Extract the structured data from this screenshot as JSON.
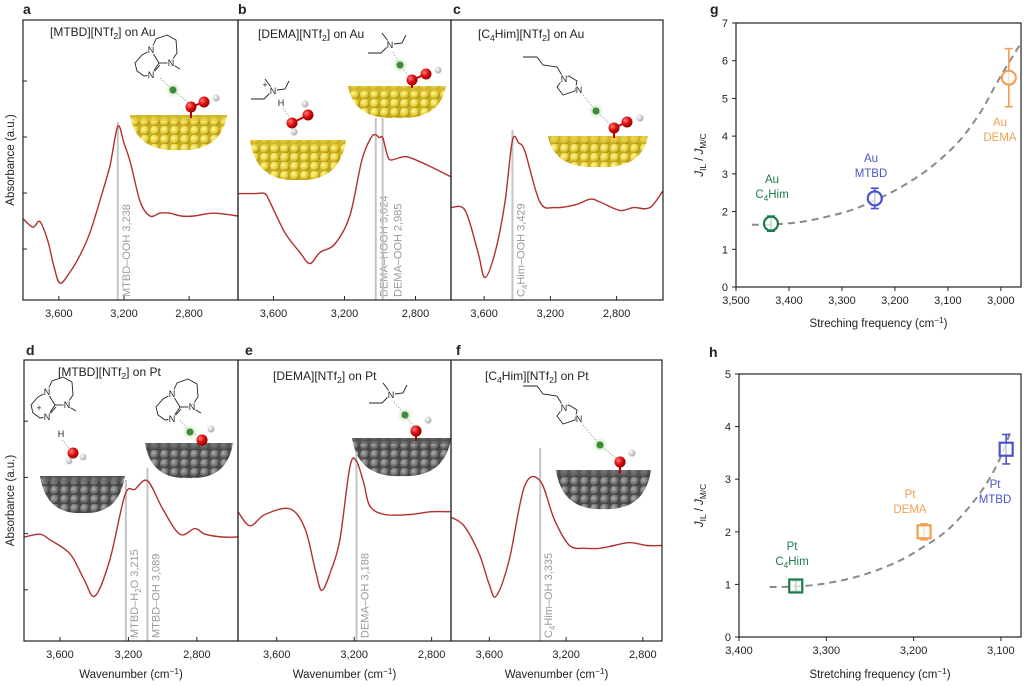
{
  "atom_labels": {
    "N": "N",
    "H": "H",
    "plus": "+"
  },
  "chart_data": [
    {
      "panel": "a",
      "type": "line",
      "title": {
        "parts": [
          "[MTBD][NTf",
          "2",
          "] on Au"
        ],
        "sub": [
          1
        ],
        "sup": []
      },
      "ylabel": {
        "parts": [
          "Absorbance (a.u.)"
        ],
        "sub": [],
        "sup": []
      },
      "xlim": [
        3820,
        2500
      ],
      "ylim": [
        0,
        1
      ],
      "xticks": [
        3600,
        3200,
        2800
      ],
      "xtick_labels": [
        "3,600",
        "3,200",
        "2,800"
      ],
      "series": [
        {
          "name": "[MTBD][NTf2] on Au",
          "color": "#b22f2f",
          "points": [
            [
              3820,
              0.29
            ],
            [
              3759,
              0.26
            ],
            [
              3716,
              0.28
            ],
            [
              3667,
              0.21
            ],
            [
              3630,
              0.12
            ],
            [
              3593,
              0.06
            ],
            [
              3531,
              0.1
            ],
            [
              3470,
              0.16
            ],
            [
              3409,
              0.24
            ],
            [
              3340,
              0.37
            ],
            [
              3286,
              0.48
            ],
            [
              3238,
              0.62
            ],
            [
              3200,
              0.56
            ],
            [
              3160,
              0.49
            ],
            [
              3100,
              0.35
            ],
            [
              3040,
              0.3
            ],
            [
              2980,
              0.31
            ],
            [
              2920,
              0.31
            ],
            [
              2850,
              0.3
            ],
            [
              2770,
              0.3
            ],
            [
              2650,
              0.31
            ],
            [
              2500,
              0.3
            ]
          ]
        }
      ],
      "annotations": [
        {
          "x": 3238,
          "label": {
            "parts": [
              "MTBD–OOH 3,238"
            ],
            "sub": [],
            "sup": []
          }
        }
      ]
    },
    {
      "panel": "b",
      "type": "line",
      "title": {
        "parts": [
          "[DEMA][NTf",
          "2",
          "] on Au"
        ],
        "sub": [
          1
        ],
        "sup": []
      },
      "xlim": [
        3800,
        2600
      ],
      "ylim": [
        0,
        1
      ],
      "xticks": [
        3600,
        3200,
        2800
      ],
      "xtick_labels": [
        "3,600",
        "3,200",
        "2,800"
      ],
      "series": [
        {
          "name": "[DEMA][NTf2] on Au",
          "color": "#b22f2f",
          "points": [
            [
              3800,
              0.38
            ],
            [
              3700,
              0.38
            ],
            [
              3648,
              0.38
            ],
            [
              3620,
              0.35
            ],
            [
              3535,
              0.24
            ],
            [
              3451,
              0.17
            ],
            [
              3395,
              0.13
            ],
            [
              3338,
              0.17
            ],
            [
              3254,
              0.2
            ],
            [
              3170,
              0.3
            ],
            [
              3102,
              0.5
            ],
            [
              3050,
              0.58
            ],
            [
              3024,
              0.59
            ],
            [
              3005,
              0.58
            ],
            [
              2985,
              0.58
            ],
            [
              2960,
              0.52
            ],
            [
              2940,
              0.5
            ],
            [
              2880,
              0.51
            ],
            [
              2838,
              0.51
            ],
            [
              2727,
              0.48
            ],
            [
              2600,
              0.44
            ]
          ]
        }
      ],
      "annotations": [
        {
          "x": 3024,
          "label": {
            "parts": [
              "DEMA–HOOH 3,024"
            ],
            "sub": [],
            "sup": []
          }
        },
        {
          "x": 2985,
          "label": {
            "parts": [
              "DEMA–OOH 2,985"
            ],
            "sub": [],
            "sup": []
          }
        }
      ]
    },
    {
      "panel": "c",
      "type": "line",
      "title": {
        "parts": [
          "[C",
          "4",
          "Him][NTf",
          "2",
          "] on Au"
        ],
        "sub": [
          1,
          3
        ],
        "sup": []
      },
      "xlim": [
        3800,
        2520
      ],
      "ylim": [
        0,
        1
      ],
      "xticks": [
        3600,
        3200,
        2800
      ],
      "xtick_labels": [
        "3,600",
        "3,200",
        "2,800"
      ],
      "series": [
        {
          "name": "[C4Him][NTf2] on Au",
          "color": "#b22f2f",
          "points": [
            [
              3800,
              0.33
            ],
            [
              3715,
              0.32
            ],
            [
              3637,
              0.17
            ],
            [
              3595,
              0.08
            ],
            [
              3534,
              0.17
            ],
            [
              3474,
              0.35
            ],
            [
              3429,
              0.57
            ],
            [
              3390,
              0.56
            ],
            [
              3353,
              0.53
            ],
            [
              3263,
              0.35
            ],
            [
              3172,
              0.33
            ],
            [
              3050,
              0.34
            ],
            [
              2960,
              0.36
            ],
            [
              2900,
              0.35
            ],
            [
              2780,
              0.32
            ],
            [
              2700,
              0.33
            ],
            [
              2600,
              0.33
            ],
            [
              2520,
              0.39
            ]
          ]
        }
      ],
      "annotations": [
        {
          "x": 3429,
          "label": {
            "parts": [
              "C",
              "4",
              "Him–OOH 3,429"
            ],
            "sub": [
              1
            ],
            "sup": []
          }
        }
      ]
    },
    {
      "panel": "d",
      "type": "line",
      "title": {
        "parts": [
          "[MTBD][NTf",
          "2",
          "] on Pt"
        ],
        "sub": [
          1
        ],
        "sup": []
      },
      "ylabel": {
        "parts": [
          "Absorbance (a.u.)"
        ],
        "sub": [],
        "sup": []
      },
      "xlabel": {
        "parts": [
          "Wavenumber (cm",
          "−1",
          ")"
        ],
        "sub": [],
        "sup": [
          1
        ]
      },
      "xlim": [
        3810,
        2560
      ],
      "ylim": [
        0,
        1
      ],
      "xticks": [
        3600,
        3200,
        2800
      ],
      "xtick_labels": [
        "3,600",
        "3,200",
        "2,800"
      ],
      "series": [
        {
          "name": "[MTBD][NTf2] on Pt",
          "color": "#b22f2f",
          "points": [
            [
              3810,
              0.37
            ],
            [
              3717,
              0.38
            ],
            [
              3658,
              0.36
            ],
            [
              3541,
              0.31
            ],
            [
              3460,
              0.22
            ],
            [
              3395,
              0.16
            ],
            [
              3308,
              0.29
            ],
            [
              3220,
              0.52
            ],
            [
              3162,
              0.54
            ],
            [
              3089,
              0.57
            ],
            [
              3000,
              0.47
            ],
            [
              2900,
              0.38
            ],
            [
              2811,
              0.4
            ],
            [
              2753,
              0.38
            ],
            [
              2650,
              0.37
            ],
            [
              2560,
              0.37
            ]
          ]
        }
      ],
      "annotations": [
        {
          "x": 3215,
          "label": {
            "parts": [
              "MTBD–H",
              "2",
              "O 3,215"
            ],
            "sub": [
              1
            ],
            "sup": []
          }
        },
        {
          "x": 3089,
          "label": {
            "parts": [
              "MTBD–OH 3,089"
            ],
            "sub": [],
            "sup": []
          }
        }
      ]
    },
    {
      "panel": "e",
      "type": "line",
      "title": {
        "parts": [
          "[DEMA][NTf",
          "2",
          "] on Pt"
        ],
        "sub": [
          1
        ],
        "sup": []
      },
      "xlabel": {
        "parts": [
          "Wavenumber (cm",
          "−1",
          ")"
        ],
        "sub": [],
        "sup": [
          1
        ]
      },
      "xlim": [
        3800,
        2700
      ],
      "ylim": [
        0,
        1
      ],
      "xticks": [
        3600,
        3200,
        2800
      ],
      "xtick_labels": [
        "3,600",
        "3,200",
        "2,800"
      ],
      "series": [
        {
          "name": "[DEMA][NTf2] on Pt",
          "color": "#b22f2f",
          "points": [
            [
              3800,
              0.46
            ],
            [
              3738,
              0.41
            ],
            [
              3661,
              0.45
            ],
            [
              3532,
              0.47
            ],
            [
              3454,
              0.4
            ],
            [
              3400,
              0.25
            ],
            [
              3367,
              0.18
            ],
            [
              3320,
              0.25
            ],
            [
              3274,
              0.36
            ],
            [
              3222,
              0.62
            ],
            [
              3188,
              0.64
            ],
            [
              3150,
              0.56
            ],
            [
              3119,
              0.48
            ],
            [
              3042,
              0.45
            ],
            [
              2913,
              0.45
            ],
            [
              2800,
              0.46
            ],
            [
              2700,
              0.46
            ]
          ]
        }
      ],
      "annotations": [
        {
          "x": 3188,
          "label": {
            "parts": [
              "DEMA–OH 3,188"
            ],
            "sub": [],
            "sup": []
          }
        }
      ]
    },
    {
      "panel": "f",
      "type": "line",
      "title": {
        "parts": [
          "[C",
          "4",
          "Him][NTf",
          "2",
          "] on Pt"
        ],
        "sub": [
          1,
          3
        ],
        "sup": []
      },
      "xlabel": {
        "parts": [
          "Wavenumber (cm",
          "−1",
          ")"
        ],
        "sub": [],
        "sup": [
          1
        ]
      },
      "xlim": [
        3800,
        2700
      ],
      "ylim": [
        0,
        1
      ],
      "xticks": [
        3600,
        3200,
        2800
      ],
      "xtick_labels": [
        "3,600",
        "3,200",
        "2,800"
      ],
      "series": [
        {
          "name": "[C4Him][NTf2] on Pt",
          "color": "#b22f2f",
          "points": [
            [
              3800,
              0.44
            ],
            [
              3732,
              0.41
            ],
            [
              3653,
              0.31
            ],
            [
              3600,
              0.2
            ],
            [
              3564,
              0.16
            ],
            [
              3496,
              0.29
            ],
            [
              3417,
              0.55
            ],
            [
              3335,
              0.57
            ],
            [
              3260,
              0.43
            ],
            [
              3182,
              0.34
            ],
            [
              3100,
              0.33
            ],
            [
              3024,
              0.33
            ],
            [
              2950,
              0.34
            ],
            [
              2867,
              0.35
            ],
            [
              2780,
              0.34
            ],
            [
              2700,
              0.34
            ]
          ]
        }
      ],
      "annotations": [
        {
          "x": 3335,
          "label": {
            "parts": [
              "C",
              "4",
              "Him–OH 3,335"
            ],
            "sub": [
              1
            ],
            "sup": []
          }
        }
      ]
    },
    {
      "panel": "g",
      "type": "scatter",
      "xlabel": {
        "parts": [
          "Streching frequency (cm",
          "−1",
          ")"
        ],
        "sub": [],
        "sup": [
          1
        ]
      },
      "ylabel": {
        "parts": [
          "J",
          "IL",
          " / ",
          "J",
          "M/C"
        ],
        "sub": [
          1,
          4
        ],
        "sup": []
      },
      "xlim": [
        3500,
        2962
      ],
      "ylim": [
        0,
        7
      ],
      "xticks": [
        3500,
        3400,
        3300,
        3200,
        3100,
        3000
      ],
      "xtick_labels": [
        "3,500",
        "3,400",
        "3,300",
        "3,200",
        "3,100",
        "3,000"
      ],
      "yticks": [
        0,
        1,
        2,
        3,
        4,
        5,
        6,
        7
      ],
      "ytick_labels": [
        "0",
        "1",
        "2",
        "3",
        "4",
        "5",
        "6",
        "7"
      ],
      "marker": "circle",
      "points": [
        {
          "metal": "Au",
          "name": {
            "parts": [
              "C",
              "4",
              "Him"
            ],
            "sub": [
              1
            ],
            "sup": []
          },
          "x": 3434,
          "y": 1.68,
          "err": 0.2,
          "color": "#1e7a4c"
        },
        {
          "metal": "Au",
          "name": {
            "parts": [
              "MTBD"
            ],
            "sub": [],
            "sup": []
          },
          "x": 3238,
          "y": 2.35,
          "err": 0.27,
          "color": "#4b55c9"
        },
        {
          "metal": "Au",
          "name": {
            "parts": [
              "DEMA"
            ],
            "sub": [],
            "sup": []
          },
          "x": 2985,
          "y": 5.55,
          "err": 0.77,
          "color": "#f0a050"
        }
      ],
      "fit": {
        "style": "dashed",
        "color": "#8a8a8a",
        "points": [
          [
            3470,
            1.65
          ],
          [
            3430,
            1.66
          ],
          [
            3380,
            1.72
          ],
          [
            3330,
            1.86
          ],
          [
            3280,
            2.05
          ],
          [
            3230,
            2.35
          ],
          [
            3180,
            2.72
          ],
          [
            3130,
            3.2
          ],
          [
            3080,
            3.85
          ],
          [
            3040,
            4.6
          ],
          [
            3010,
            5.35
          ],
          [
            2985,
            5.95
          ],
          [
            2965,
            6.4
          ]
        ]
      }
    },
    {
      "panel": "h",
      "type": "scatter",
      "xlabel": {
        "parts": [
          "Stretching frequency (cm",
          "−1",
          ")"
        ],
        "sub": [],
        "sup": [
          1
        ]
      },
      "ylabel": {
        "parts": [
          "J",
          "IL",
          " / ",
          "J",
          "M/C"
        ],
        "sub": [
          1,
          4
        ],
        "sup": []
      },
      "xlim": [
        3400,
        3077
      ],
      "ylim": [
        0,
        5
      ],
      "xticks": [
        3400,
        3300,
        3200,
        3100
      ],
      "xtick_labels": [
        "3,400",
        "3,300",
        "3,200",
        "3,100"
      ],
      "yticks": [
        0,
        1,
        2,
        3,
        4,
        5
      ],
      "ytick_labels": [
        "0",
        "1",
        "2",
        "3",
        "4",
        "5"
      ],
      "marker": "square",
      "points": [
        {
          "metal": "Pt",
          "name": {
            "parts": [
              "C",
              "4",
              "Him"
            ],
            "sub": [
              1
            ],
            "sup": []
          },
          "x": 3335,
          "y": 0.97,
          "err": 0.1,
          "color": "#1e7a4c"
        },
        {
          "metal": "Pt",
          "name": {
            "parts": [
              "DEMA"
            ],
            "sub": [],
            "sup": []
          },
          "x": 3188,
          "y": 2.0,
          "err": 0.15,
          "color": "#f0a050"
        },
        {
          "metal": "Pt",
          "name": {
            "parts": [
              "MTBD"
            ],
            "sub": [],
            "sup": []
          },
          "x": 3094,
          "y": 3.57,
          "err": 0.28,
          "color": "#4b55c9"
        }
      ],
      "fit": {
        "style": "dashed",
        "color": "#8a8a8a",
        "points": [
          [
            3365,
            0.95
          ],
          [
            3335,
            0.96
          ],
          [
            3300,
            1.02
          ],
          [
            3260,
            1.17
          ],
          [
            3220,
            1.42
          ],
          [
            3190,
            1.7
          ],
          [
            3160,
            2.05
          ],
          [
            3130,
            2.6
          ],
          [
            3110,
            3.1
          ],
          [
            3097,
            3.55
          ],
          [
            3088,
            3.95
          ]
        ]
      }
    }
  ]
}
